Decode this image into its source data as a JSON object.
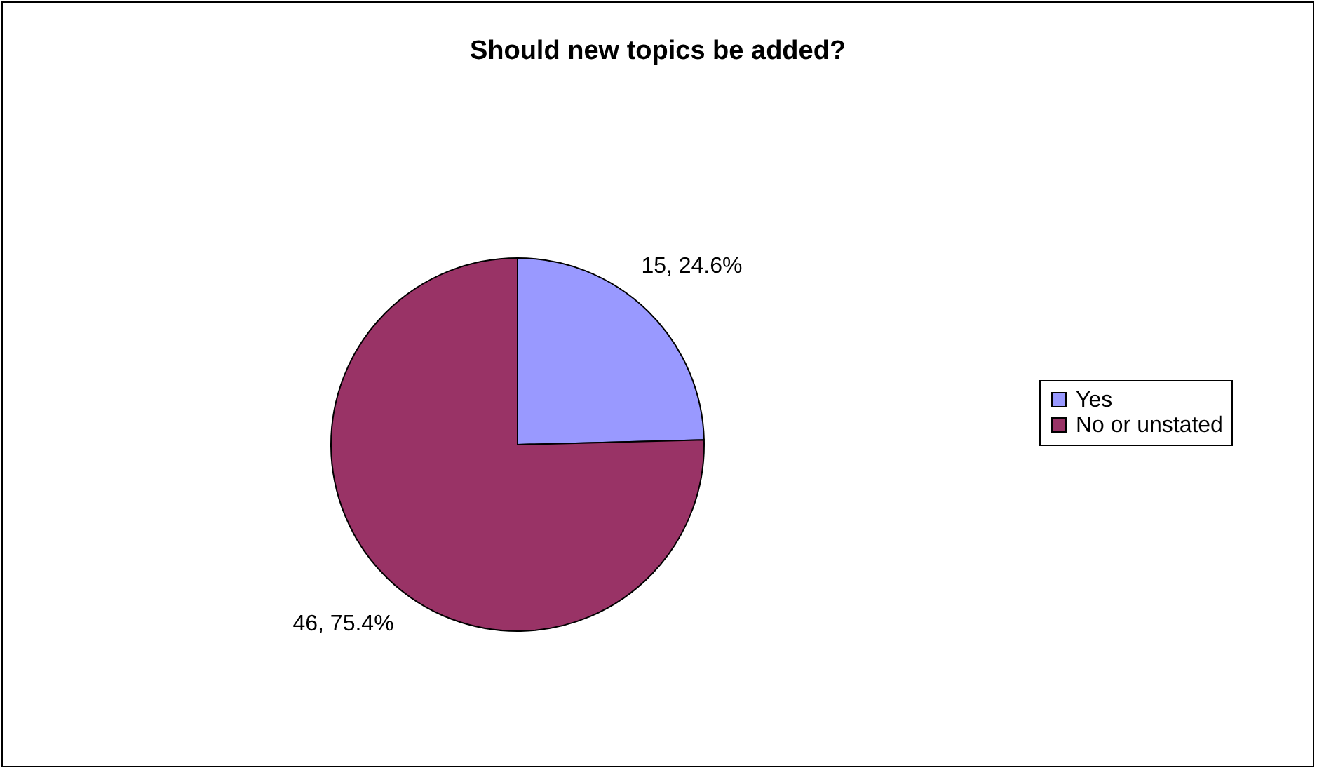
{
  "chart_data": {
    "type": "pie",
    "title": "Should new topics be added?",
    "categories": [
      "Yes",
      "No or unstated"
    ],
    "values": [
      15,
      46
    ],
    "colors": [
      "#9999ff",
      "#993366"
    ],
    "value_labels": [
      "15, 24.6%",
      "46, 75.4%"
    ],
    "legend": "right"
  }
}
